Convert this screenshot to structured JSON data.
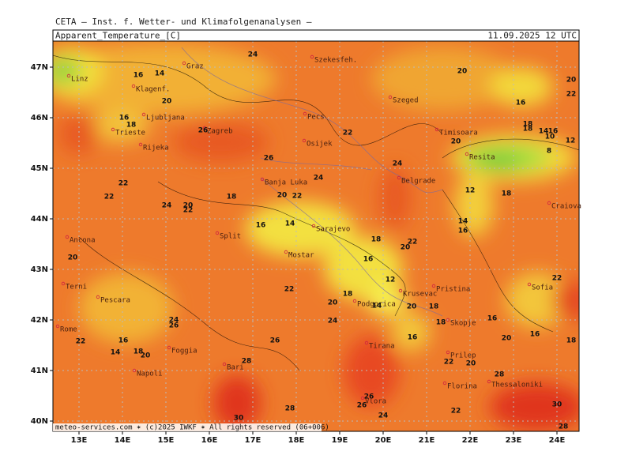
{
  "header": {
    "institute": "CETA — Inst. f. Wetter- und Klimafolgenanalysen —",
    "field": "Apparent_Temperature_[C]",
    "valid": "11.09.2025 12 UTC"
  },
  "map": {
    "lon_ticks": [
      {
        "value": 13,
        "label": "13E"
      },
      {
        "value": 14,
        "label": "14E"
      },
      {
        "value": 15,
        "label": "15E"
      },
      {
        "value": 16,
        "label": "16E"
      },
      {
        "value": 17,
        "label": "17E"
      },
      {
        "value": 18,
        "label": "18E"
      },
      {
        "value": 19,
        "label": "19E"
      },
      {
        "value": 20,
        "label": "20E"
      },
      {
        "value": 21,
        "label": "21E"
      },
      {
        "value": 22,
        "label": "22E"
      },
      {
        "value": 23,
        "label": "23E"
      },
      {
        "value": 24,
        "label": "24E"
      }
    ],
    "lat_ticks": [
      {
        "value": 47,
        "label": "47N"
      },
      {
        "value": 46,
        "label": "46N"
      },
      {
        "value": 45,
        "label": "45N"
      },
      {
        "value": 44,
        "label": "44N"
      },
      {
        "value": 43,
        "label": "43N"
      },
      {
        "value": 42,
        "label": "42N"
      },
      {
        "value": 41,
        "label": "41N"
      },
      {
        "value": 40,
        "label": "40N"
      }
    ],
    "cities": [
      "Graz",
      "Szekesfeh.",
      "Linz",
      "Klagenf.",
      "Ljubljana",
      "Pecs",
      "Szeged",
      "Trieste",
      "Zagreb",
      "Osijek",
      "Timisoara",
      "Rijeka",
      "Resita",
      "Banja Luka",
      "Belgrade",
      "Craiova",
      "Sarajevo",
      "Ancona",
      "Split",
      "Mostar",
      "Terni",
      "Pescara",
      "Pristina",
      "Sofia",
      "Podgorica",
      "Krusevac",
      "Skopje",
      "Rome",
      "Tirana",
      "Prilep",
      "Foggia",
      "Bari",
      "Napoli",
      "Florina",
      "Thessaloniki",
      "Vlora"
    ],
    "contour_labels": [
      24,
      20,
      16,
      14,
      20,
      22,
      16,
      20,
      16,
      18,
      26,
      22,
      18,
      18,
      14,
      10,
      16,
      12,
      20,
      8,
      26,
      24,
      24,
      22,
      22,
      18,
      20,
      22,
      12,
      18,
      24,
      20,
      22,
      16,
      14,
      14,
      16,
      18,
      22,
      20,
      20,
      16,
      12,
      22,
      22,
      18,
      20,
      14,
      20,
      18,
      24,
      26,
      24,
      18,
      16,
      22,
      16,
      14,
      18,
      20,
      26,
      16,
      20,
      16,
      18,
      22,
      20,
      28,
      28,
      26,
      26,
      28,
      24,
      30,
      30,
      22,
      28
    ],
    "footer": "meteo-services.com ✶ (c)2025 IWKF ✶ All rights reserved (06+006)"
  }
}
